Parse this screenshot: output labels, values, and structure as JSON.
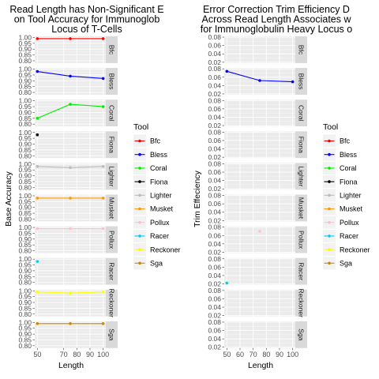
{
  "chart_data": [
    {
      "type": "line",
      "title_lines": [
        "Read Length has Non-Significant E",
        "on Tool Accuracy for Immunoglob",
        "Locus of T-Cells"
      ],
      "xlabel": "Length",
      "ylabel": "Base Accuracy",
      "x_ticks": [
        "50",
        "70",
        "80",
        "90",
        "100"
      ],
      "facets": [
        {
          "name": "Bfc",
          "color": "#ff0000",
          "x": [
            50,
            75,
            100
          ],
          "y": [
            0.99,
            0.99,
            0.99
          ],
          "ylim": [
            0.78,
            1.01
          ],
          "ticks": [
            "1.00",
            "0.95",
            "0.90",
            "0.85",
            "0.80"
          ],
          "tick_values": [
            1.0,
            0.95,
            0.9,
            0.85,
            0.8
          ]
        },
        {
          "name": "Bless",
          "color": "#0000ff",
          "x": [
            50,
            75,
            100
          ],
          "y": [
            0.98,
            0.94,
            0.92
          ],
          "ylim": [
            0.78,
            1.01
          ],
          "ticks": [
            "1.00",
            "0.95",
            "0.90",
            "0.85",
            "0.80"
          ],
          "tick_values": [
            1.0,
            0.95,
            0.9,
            0.85,
            0.8
          ]
        },
        {
          "name": "Coral",
          "color": "#00ee00",
          "x": [
            50,
            75,
            100
          ],
          "y": [
            0.85,
            0.97,
            0.95
          ],
          "ylim": [
            0.78,
            1.01
          ],
          "ticks": [
            "1.00",
            "0.95",
            "0.90",
            "0.85",
            "0.80"
          ],
          "tick_values": [
            1.0,
            0.95,
            0.9,
            0.85,
            0.8
          ]
        },
        {
          "name": "Fiona",
          "color": "#000000",
          "x": [
            50
          ],
          "y": [
            0.98
          ],
          "ylim": [
            0.78,
            1.01
          ],
          "ticks": [
            "1.00",
            "0.95",
            "0.90",
            "0.85",
            "0.80"
          ],
          "tick_values": [
            1.0,
            0.95,
            0.9,
            0.85,
            0.8
          ]
        },
        {
          "name": "Lighter",
          "color": "#bbbbbb",
          "x": [
            50,
            75,
            100
          ],
          "y": [
            0.98,
            0.97,
            0.98
          ],
          "ylim": [
            0.78,
            1.01
          ],
          "ticks": [
            "1.00",
            "0.95",
            "0.90",
            "0.85",
            "0.80"
          ],
          "tick_values": [
            1.0,
            0.95,
            0.9,
            0.85,
            0.8
          ]
        },
        {
          "name": "Musket",
          "color": "#ff9900",
          "x": [
            50,
            75,
            100
          ],
          "y": [
            0.98,
            0.98,
            0.98
          ],
          "ylim": [
            0.78,
            1.01
          ],
          "ticks": [
            "1.00",
            "0.95",
            "0.90",
            "0.85",
            "0.80"
          ],
          "tick_values": [
            1.0,
            0.95,
            0.9,
            0.85,
            0.8
          ]
        },
        {
          "name": "Pollux",
          "color": "#ffc0cb",
          "x": [
            50,
            75,
            100
          ],
          "y": [
            0.99,
            0.99,
            0.99
          ],
          "ylim": [
            0.78,
            1.01
          ],
          "ticks": [
            "1.00",
            "0.95",
            "0.90",
            "0.85",
            "0.80"
          ],
          "tick_values": [
            1.0,
            0.95,
            0.9,
            0.85,
            0.8
          ]
        },
        {
          "name": "Racer",
          "color": "#00ccee",
          "x": [
            50
          ],
          "y": [
            0.98
          ],
          "ylim": [
            0.78,
            1.01
          ],
          "ticks": [
            "1.00",
            "0.95",
            "0.90",
            "0.85",
            "0.80"
          ],
          "tick_values": [
            1.0,
            0.95,
            0.9,
            0.85,
            0.8
          ]
        },
        {
          "name": "Reckoner",
          "color": "#ffff00",
          "x": [
            50,
            75,
            100
          ],
          "y": [
            0.99,
            0.98,
            0.99
          ],
          "ylim": [
            0.78,
            1.01
          ],
          "ticks": [
            "1.00",
            "0.95",
            "0.90",
            "0.85",
            "0.80"
          ],
          "tick_values": [
            1.0,
            0.95,
            0.9,
            0.85,
            0.8
          ]
        },
        {
          "name": "Sga",
          "color": "#cc8800",
          "x": [
            50,
            75,
            100
          ],
          "y": [
            0.99,
            0.99,
            0.99
          ],
          "ylim": [
            0.78,
            1.01
          ],
          "ticks": [
            "1.00",
            "0.95",
            "0.90",
            "0.85",
            "0.80"
          ],
          "tick_values": [
            1.0,
            0.95,
            0.9,
            0.85,
            0.8
          ]
        }
      ]
    },
    {
      "type": "line",
      "title_lines": [
        "Error Correction Trim Efficiency D",
        "Across Read Length Associates w",
        "for Immunoglobulin Heavy Locus o"
      ],
      "xlabel": "Length",
      "ylabel": "Trim Effeciency",
      "x_ticks": [
        "50",
        "60",
        "70",
        "80",
        "90",
        "100"
      ],
      "facets": [
        {
          "name": "Bfc",
          "color": "#ff0000",
          "x": [],
          "y": [],
          "ylim": [
            0.018,
            0.082
          ],
          "ticks": [
            "0.08",
            "0.06",
            "0.04",
            "0.02"
          ],
          "tick_values": [
            0.08,
            0.06,
            0.04,
            0.02
          ]
        },
        {
          "name": "Bless",
          "color": "#0000ff",
          "x": [
            50,
            75,
            100
          ],
          "y": [
            0.074,
            0.052,
            0.049
          ],
          "ylim": [
            0.018,
            0.082
          ],
          "ticks": [
            "0.08",
            "0.06",
            "0.04",
            "0.02"
          ],
          "tick_values": [
            0.08,
            0.06,
            0.04,
            0.02
          ]
        },
        {
          "name": "Coral",
          "color": "#00ee00",
          "x": [],
          "y": [],
          "ylim": [
            0.018,
            0.082
          ],
          "ticks": [
            "0.08",
            "0.06",
            "0.04",
            "0.02"
          ],
          "tick_values": [
            0.08,
            0.06,
            0.04,
            0.02
          ]
        },
        {
          "name": "Fiona",
          "color": "#000000",
          "x": [],
          "y": [],
          "ylim": [
            0.018,
            0.082
          ],
          "ticks": [
            "0.08",
            "0.06",
            "0.04",
            "0.02"
          ],
          "tick_values": [
            0.08,
            0.06,
            0.04,
            0.02
          ]
        },
        {
          "name": "Lighter",
          "color": "#bbbbbb",
          "x": [],
          "y": [],
          "ylim": [
            0.018,
            0.082
          ],
          "ticks": [
            "0.08",
            "0.06",
            "0.04",
            "0.02"
          ],
          "tick_values": [
            0.08,
            0.06,
            0.04,
            0.02
          ]
        },
        {
          "name": "Musket",
          "color": "#ff9900",
          "x": [],
          "y": [],
          "ylim": [
            0.018,
            0.082
          ],
          "ticks": [
            "0.08",
            "0.06",
            "0.04",
            "0.02"
          ],
          "tick_values": [
            0.08,
            0.06,
            0.04,
            0.02
          ]
        },
        {
          "name": "Pollux",
          "color": "#ffc0cb",
          "x": [
            75
          ],
          "y": [
            0.07
          ],
          "ylim": [
            0.018,
            0.082
          ],
          "ticks": [
            "0.08",
            "0.06",
            "0.04",
            "0.02"
          ],
          "tick_values": [
            0.08,
            0.06,
            0.04,
            0.02
          ]
        },
        {
          "name": "Racer",
          "color": "#00ccee",
          "x": [
            50
          ],
          "y": [
            0.022
          ],
          "ylim": [
            0.018,
            0.082
          ],
          "ticks": [
            "0.08",
            "0.06",
            "0.04",
            "0.02"
          ],
          "tick_values": [
            0.08,
            0.06,
            0.04,
            0.02
          ]
        },
        {
          "name": "Reckoner",
          "color": "#ffff00",
          "x": [],
          "y": [],
          "ylim": [
            0.018,
            0.082
          ],
          "ticks": [
            "0.08",
            "0.06",
            "0.04",
            "0.02"
          ],
          "tick_values": [
            0.08,
            0.06,
            0.04,
            0.02
          ]
        },
        {
          "name": "Sga",
          "color": "#cc8800",
          "x": [],
          "y": [],
          "ylim": [
            0.018,
            0.082
          ],
          "ticks": [
            "0.08",
            "0.06",
            "0.04",
            "0.02"
          ],
          "tick_values": [
            0.08,
            0.06,
            0.04,
            0.02
          ]
        }
      ]
    }
  ],
  "legend": {
    "title": "Tool",
    "items": [
      {
        "name": "Bfc",
        "color": "#ff0000"
      },
      {
        "name": "Bless",
        "color": "#0000ff"
      },
      {
        "name": "Coral",
        "color": "#00ee00"
      },
      {
        "name": "Fiona",
        "color": "#000000"
      },
      {
        "name": "Lighter",
        "color": "#bbbbbb"
      },
      {
        "name": "Musket",
        "color": "#ff9900"
      },
      {
        "name": "Pollux",
        "color": "#ffc0cb"
      },
      {
        "name": "Racer",
        "color": "#00ccee"
      },
      {
        "name": "Reckoner",
        "color": "#ffff00"
      },
      {
        "name": "Sga",
        "color": "#cc8800"
      }
    ]
  }
}
